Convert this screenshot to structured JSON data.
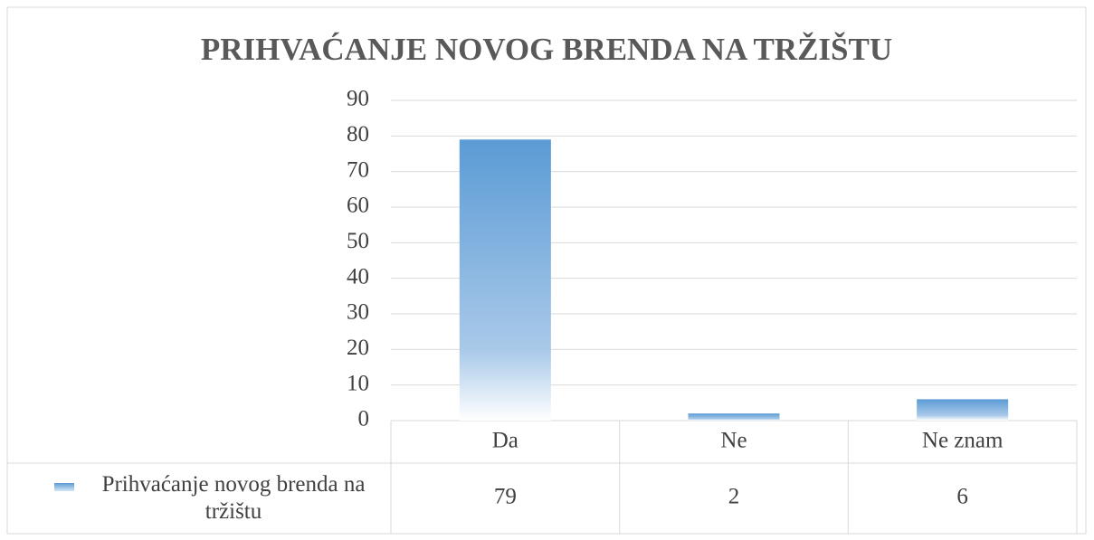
{
  "chart_data": {
    "type": "bar",
    "title": "PRIHVAĆANJE NOVOG BRENDA NA TRŽIŠTU",
    "categories": [
      "Da",
      "Ne",
      "Ne znam"
    ],
    "series": [
      {
        "name": "Prihvaćanje novog brenda na tržištu",
        "color": "#5b9bd5",
        "values": [
          79,
          2,
          6
        ]
      }
    ],
    "ylim": [
      0,
      90
    ],
    "yticks": [
      0,
      10,
      20,
      30,
      40,
      50,
      60,
      70,
      80,
      90
    ],
    "grid": true,
    "data_table": true
  }
}
